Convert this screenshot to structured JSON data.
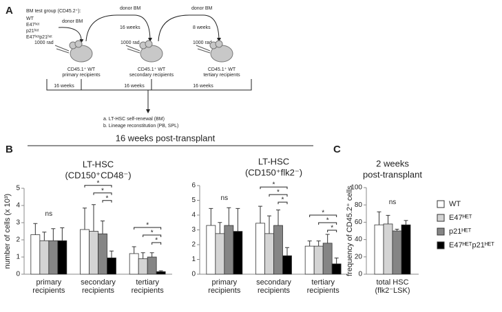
{
  "panel_a": {
    "label": "A",
    "test_group": {
      "title": "BM test group (CD45.2⁺):",
      "items": [
        "WT",
        "E47ʰᵉᵗ",
        "p21ʰᵉᵗ",
        "E47ʰᵉᵗp21ʰᵉᵗ"
      ]
    },
    "donor_labels": [
      "donor BM",
      "donor BM",
      "donor BM"
    ],
    "transfer_intervals": [
      "16 weeks",
      "8 weeks"
    ],
    "irradiation": [
      "1000 rad",
      "1000 rad",
      "1000 rad"
    ],
    "recipients": [
      [
        "CD45.1⁺ WT",
        "primary recipients"
      ],
      [
        "CD45.1⁺ WT",
        "secondary recipients"
      ],
      [
        "CD45.1⁺ WT",
        "tertiary recipients"
      ]
    ],
    "readout_intervals": [
      "16 weeks",
      "16 weeks",
      "16 weeks"
    ],
    "readouts": [
      "a. LT-HSC self-renewal (BM)",
      "b. Lineage reconstitution (PB, SPL)"
    ]
  },
  "panel_b": {
    "label": "B",
    "title": "16 weeks post-transplant"
  },
  "panel_c": {
    "label": "C"
  },
  "chart_data": [
    {
      "type": "bar",
      "title": "LT-HSC",
      "subtitle": "(CD150⁺CD48⁻)",
      "y_label": "number of cells (x 10³)",
      "categories": [
        "primary recipients",
        "secondary recipients",
        "tertiary recipients"
      ],
      "series": [
        {
          "color": "#ffffff",
          "values": [
            2.3,
            2.6,
            1.2
          ],
          "errors": [
            0.65,
            1.25,
            0.4
          ]
        },
        {
          "color": "#d4d4d4",
          "values": [
            1.95,
            2.5,
            0.9
          ],
          "errors": [
            0.5,
            1.55,
            0.35
          ]
        },
        {
          "color": "#858585",
          "values": [
            1.95,
            2.35,
            1.0
          ],
          "errors": [
            0.7,
            0.75,
            0.25
          ]
        },
        {
          "color": "#000000",
          "values": [
            1.95,
            0.95,
            0.15
          ],
          "errors": [
            0.75,
            0.4,
            0.05
          ]
        }
      ],
      "ylim": [
        0,
        5
      ],
      "yticks": [
        0,
        1,
        2,
        3,
        4,
        5
      ],
      "annotations": [
        "ns",
        "*",
        "*",
        "*",
        "*",
        "*",
        "*"
      ]
    },
    {
      "type": "bar",
      "title": "LT-HSC",
      "subtitle": "(CD150⁺flk2⁻)",
      "categories": [
        "primary recipients",
        "secondary recipients",
        "tertiary recipients"
      ],
      "series": [
        {
          "color": "#ffffff",
          "values": [
            3.3,
            3.45,
            1.9
          ],
          "errors": [
            1.15,
            1.15,
            0.35
          ]
        },
        {
          "color": "#d4d4d4",
          "values": [
            2.75,
            2.75,
            1.9
          ],
          "errors": [
            0.75,
            1.2,
            0.35
          ]
        },
        {
          "color": "#858585",
          "values": [
            3.3,
            3.3,
            2.1
          ],
          "errors": [
            1.2,
            1.05,
            0.6
          ]
        },
        {
          "color": "#000000",
          "values": [
            2.9,
            1.25,
            0.7
          ],
          "errors": [
            1.55,
            0.55,
            0.4
          ]
        }
      ],
      "ylim": [
        0,
        6
      ],
      "yticks": [
        0,
        1,
        2,
        3,
        4,
        5,
        6
      ],
      "annotations": [
        "ns",
        "*",
        "*",
        "*",
        "*",
        "*",
        "*"
      ]
    },
    {
      "type": "bar",
      "title": "2 weeks",
      "subtitle": "post-transplant",
      "y_label": "frequency of CD45.2⁺ cells",
      "categories": [
        "total HSC (flk2⁻LSK)"
      ],
      "series": [
        {
          "name": "WT",
          "color": "#ffffff",
          "values": [
            57
          ],
          "errors": [
            15
          ]
        },
        {
          "name": "E47ᴴᴱᵀ",
          "color": "#d4d4d4",
          "values": [
            58
          ],
          "errors": [
            10
          ]
        },
        {
          "name": "p21ᴴᴱᵀ",
          "color": "#858585",
          "values": [
            50
          ],
          "errors": [
            2
          ]
        },
        {
          "name": "E47ᴴᴱᵀp21ᴴᴱᵀ",
          "color": "#000000",
          "values": [
            57
          ],
          "errors": [
            5
          ]
        }
      ],
      "ylim": [
        0,
        100
      ],
      "yticks": [
        0,
        20,
        40,
        60,
        80,
        100
      ],
      "annotations": [
        "ns"
      ]
    }
  ]
}
